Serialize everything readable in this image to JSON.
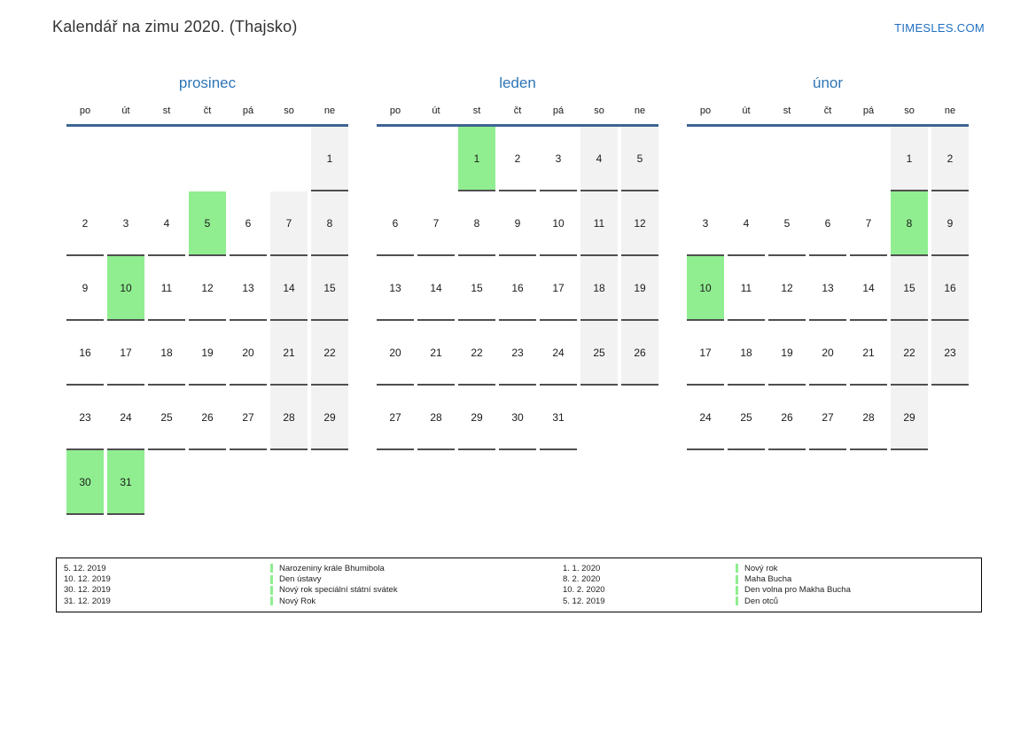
{
  "page": {
    "title": "Kalendář na zimu 2020. (Thajsko)",
    "brand": "TIMESLES.COM"
  },
  "colors": {
    "holiday": "#90ee90",
    "weekend": "#f2f2f2",
    "month_title": "#2e75b6",
    "brand": "#1f6fc2",
    "header_line": "#3d6493",
    "cell_border": "#4f4f4f"
  },
  "weekdays": [
    "po",
    "út",
    "st",
    "čt",
    "pá",
    "so",
    "ne"
  ],
  "months": [
    {
      "name": "prosinec",
      "holidays": [
        5,
        10,
        30,
        31
      ],
      "weeks": [
        [
          null,
          null,
          null,
          null,
          null,
          null,
          1
        ],
        [
          2,
          3,
          4,
          5,
          6,
          7,
          8
        ],
        [
          9,
          10,
          11,
          12,
          13,
          14,
          15
        ],
        [
          16,
          17,
          18,
          19,
          20,
          21,
          22
        ],
        [
          23,
          24,
          25,
          26,
          27,
          28,
          29
        ],
        [
          30,
          31,
          null,
          null,
          null,
          null,
          null
        ]
      ]
    },
    {
      "name": "leden",
      "holidays": [
        1
      ],
      "weeks": [
        [
          null,
          null,
          1,
          2,
          3,
          4,
          5
        ],
        [
          6,
          7,
          8,
          9,
          10,
          11,
          12
        ],
        [
          13,
          14,
          15,
          16,
          17,
          18,
          19
        ],
        [
          20,
          21,
          22,
          23,
          24,
          25,
          26
        ],
        [
          27,
          28,
          29,
          30,
          31,
          null,
          null
        ]
      ]
    },
    {
      "name": "únor",
      "holidays": [
        8,
        10
      ],
      "weeks": [
        [
          null,
          null,
          null,
          null,
          null,
          1,
          2
        ],
        [
          3,
          4,
          5,
          6,
          7,
          8,
          9
        ],
        [
          10,
          11,
          12,
          13,
          14,
          15,
          16
        ],
        [
          17,
          18,
          19,
          20,
          21,
          22,
          23
        ],
        [
          24,
          25,
          26,
          27,
          28,
          29,
          null
        ]
      ]
    }
  ],
  "legend": {
    "columns": [
      {
        "entries": [
          {
            "date": "5. 12. 2019",
            "name": "Narozeniny krále Bhumibola"
          },
          {
            "date": "10. 12. 2019",
            "name": "Den ústavy"
          },
          {
            "date": "30. 12. 2019",
            "name": "Nový rok speciální státní svátek"
          },
          {
            "date": "31. 12. 2019",
            "name": "Nový Rok"
          }
        ]
      },
      {
        "entries": [
          {
            "date": "1. 1. 2020",
            "name": "Nový rok"
          },
          {
            "date": "8. 2. 2020",
            "name": "Maha Bucha"
          },
          {
            "date": "10. 2. 2020",
            "name": "Den volna pro Makha Bucha"
          },
          {
            "date": "5. 12. 2019",
            "name": "Den otců"
          }
        ]
      }
    ]
  }
}
